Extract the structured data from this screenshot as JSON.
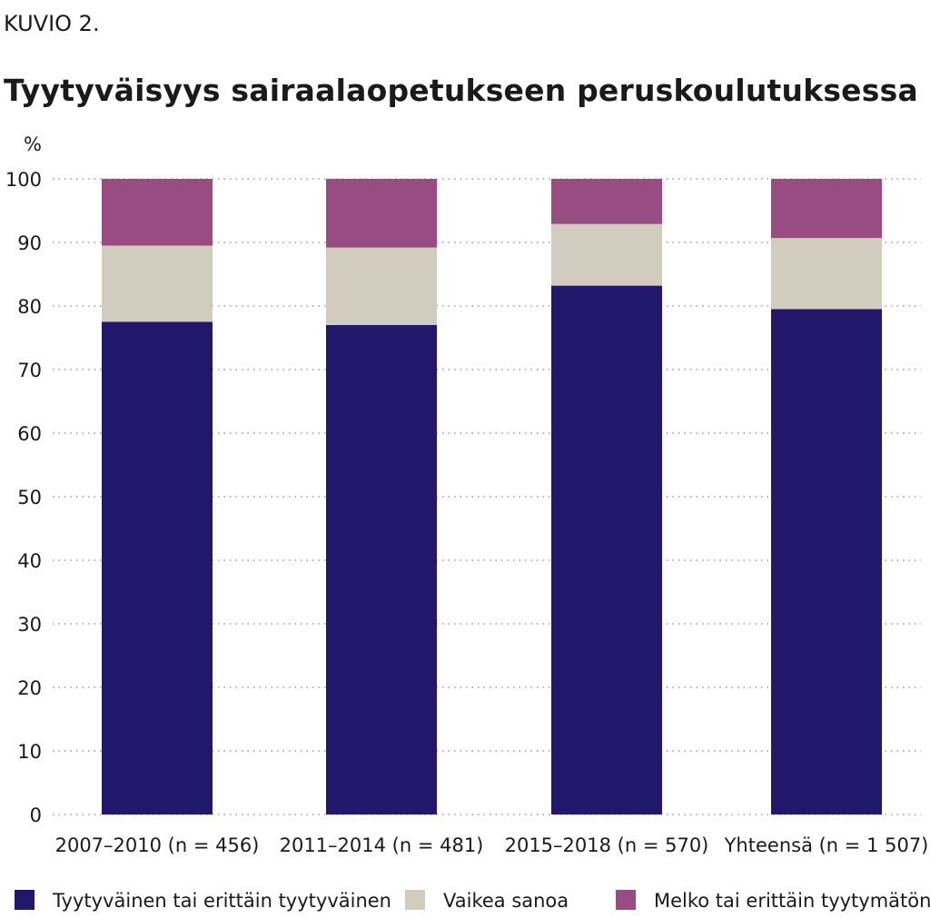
{
  "figure_label": "KUVIO 2.",
  "chart_data": {
    "type": "bar",
    "stacked": true,
    "title": "Tyytyväisyys sairaalaopetukseen peruskoulutuksessa",
    "ylabel": "%",
    "ylim": [
      0,
      100
    ],
    "yticks": [
      "0",
      "10",
      "20",
      "30",
      "40",
      "50",
      "60",
      "70",
      "80",
      "90",
      "100"
    ],
    "grid": true,
    "legend_position": "bottom",
    "categories": [
      "2007–2010 (n = 456)",
      "2011–2014 (n = 481)",
      "2015–2018 (n = 570)",
      "Yhteensä (n = 1 507)"
    ],
    "series": [
      {
        "name": "Tyytyväinen tai erittäin tyytyväinen",
        "color": "#21176b",
        "values": [
          77.5,
          77,
          83.2,
          79.5
        ]
      },
      {
        "name": "Vaikea sanoa",
        "color": "#d1ccbd",
        "values": [
          12,
          12.2,
          9.7,
          11.2
        ]
      },
      {
        "name": "Melko tai erittäin tyytymätön",
        "color": "#994c82",
        "values": [
          10.5,
          10.8,
          7.1,
          9.3
        ]
      }
    ]
  }
}
